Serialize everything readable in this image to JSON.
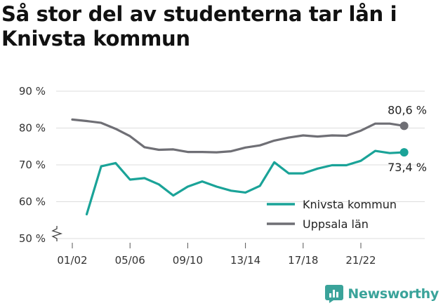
{
  "title": "Så stor del av studenterna tar lån i Knivsta kommun",
  "brand": {
    "name": "Newsworthy",
    "color": "#3aa39a",
    "icon": "bar-chart-icon"
  },
  "chart_data": {
    "type": "line",
    "x": [
      "01/02",
      "02/03",
      "03/04",
      "04/05",
      "05/06",
      "06/07",
      "07/08",
      "08/09",
      "09/10",
      "10/11",
      "11/12",
      "12/13",
      "13/14",
      "14/15",
      "15/16",
      "16/17",
      "17/18",
      "18/19",
      "19/20",
      "20/21",
      "21/22",
      "22/23",
      "23/24",
      "24/25"
    ],
    "x_tick_labels": [
      "01/02",
      "05/06",
      "09/10",
      "13/14",
      "17/18",
      "21/22"
    ],
    "y_ticks": [
      50,
      60,
      70,
      80,
      90
    ],
    "y_tick_labels": [
      "50 %",
      "60 %",
      "70 %",
      "80 %",
      "90 %"
    ],
    "ylim": [
      50,
      90
    ],
    "y_axis_break": true,
    "grid": true,
    "legend_position": "bottom-right",
    "series": [
      {
        "name": "Knivsta kommun",
        "color": "#1aa398",
        "values": [
          null,
          56.6,
          69.6,
          70.5,
          66.0,
          66.4,
          64.7,
          61.7,
          64.1,
          65.5,
          64.1,
          63.0,
          62.5,
          64.3,
          70.7,
          67.7,
          67.7,
          69.0,
          69.9,
          69.9,
          71.1,
          73.8,
          73.2,
          73.4
        ],
        "end_label": "73,4 %"
      },
      {
        "name": "Uppsala län",
        "color": "#6f6f75",
        "values": [
          82.3,
          81.9,
          81.4,
          79.8,
          77.8,
          74.8,
          74.1,
          74.2,
          73.5,
          73.5,
          73.4,
          73.7,
          74.7,
          75.3,
          76.6,
          77.4,
          78.0,
          77.7,
          78.0,
          77.9,
          79.3,
          81.2,
          81.2,
          80.6
        ],
        "end_label": "80,6 %"
      }
    ]
  }
}
